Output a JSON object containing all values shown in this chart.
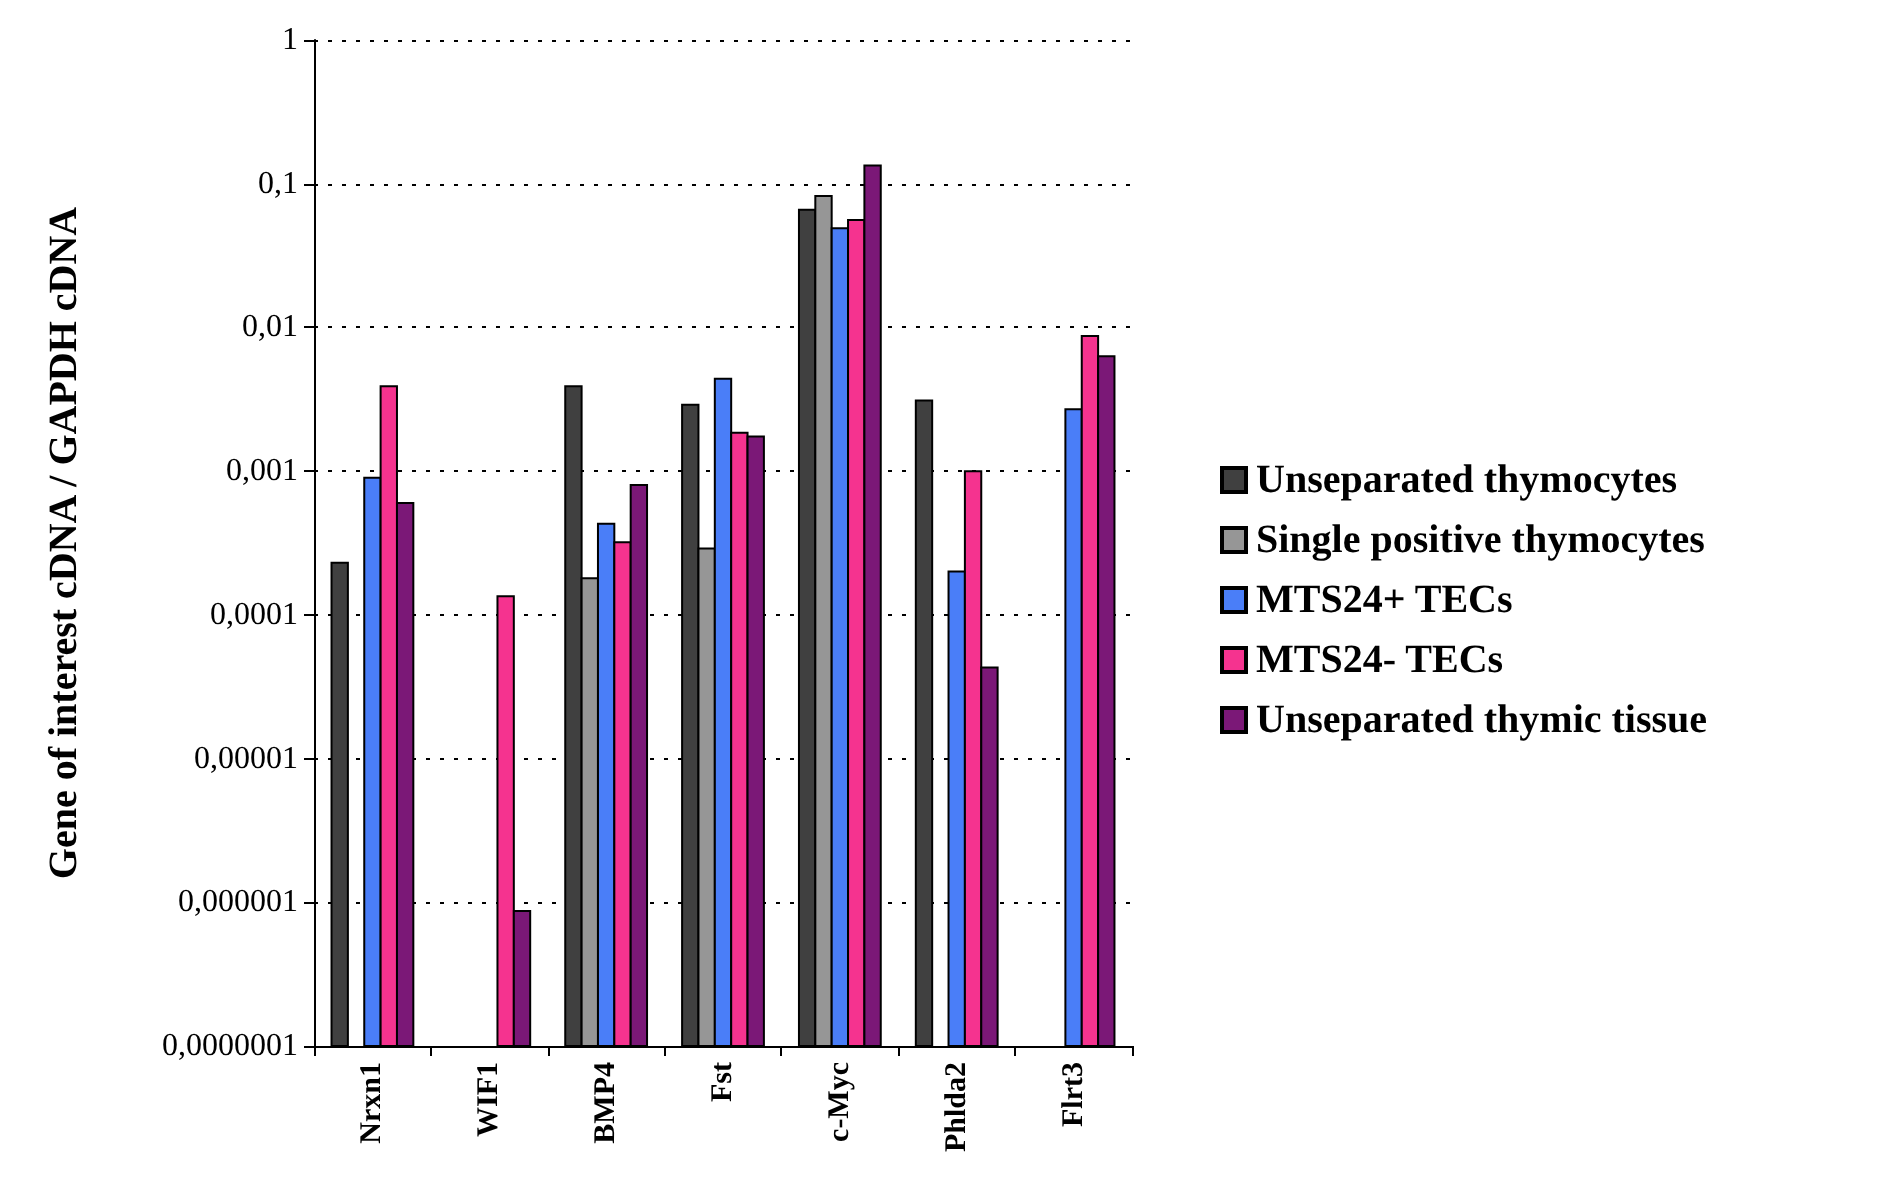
{
  "chart_data": {
    "type": "bar",
    "ylabel": "Gene of interest cDNA / GAPDH cDNA",
    "categories": [
      "Nrxn1",
      "WIF1",
      "BMP4",
      "Fst",
      "c-Myc",
      "Phlda2",
      "Flrt3"
    ],
    "series": [
      {
        "name": "Unseparated thymocytes",
        "color": "#404040",
        "values": [
          0.00023,
          null,
          0.0039,
          0.0029,
          0.066,
          0.0031,
          null
        ]
      },
      {
        "name": "Single positive thymocytes",
        "color": "#969696",
        "values": [
          null,
          null,
          0.00018,
          0.00029,
          0.082,
          null,
          null
        ]
      },
      {
        "name": "MTS24+ TECs",
        "color": "#4a7ef8",
        "values": [
          0.0009,
          null,
          0.00043,
          0.0044,
          0.049,
          0.0002,
          0.0027
        ]
      },
      {
        "name": "MTS24- TECs",
        "color": "#f5338f",
        "values": [
          0.0039,
          0.000135,
          0.00032,
          0.00185,
          0.056,
          0.001,
          0.0087
        ]
      },
      {
        "name": "Unseparated thymic tissue",
        "color": "#7b1877",
        "values": [
          0.0006,
          8.7e-07,
          0.0008,
          0.00174,
          0.134,
          4.3e-05,
          0.0063
        ]
      }
    ],
    "log": "y",
    "ylim": [
      1e-07,
      1
    ],
    "yticks": [
      {
        "value": 1e-07,
        "label": "0,0000001"
      },
      {
        "value": 1e-06,
        "label": "0,000001"
      },
      {
        "value": 1e-05,
        "label": "0,00001"
      },
      {
        "value": 0.0001,
        "label": "0,0001"
      },
      {
        "value": 0.001,
        "label": "0,001"
      },
      {
        "value": 0.01,
        "label": "0,01"
      },
      {
        "value": 0.1,
        "label": "0,1"
      },
      {
        "value": 1,
        "label": "1"
      }
    ],
    "grid": "y",
    "legend": "right"
  }
}
